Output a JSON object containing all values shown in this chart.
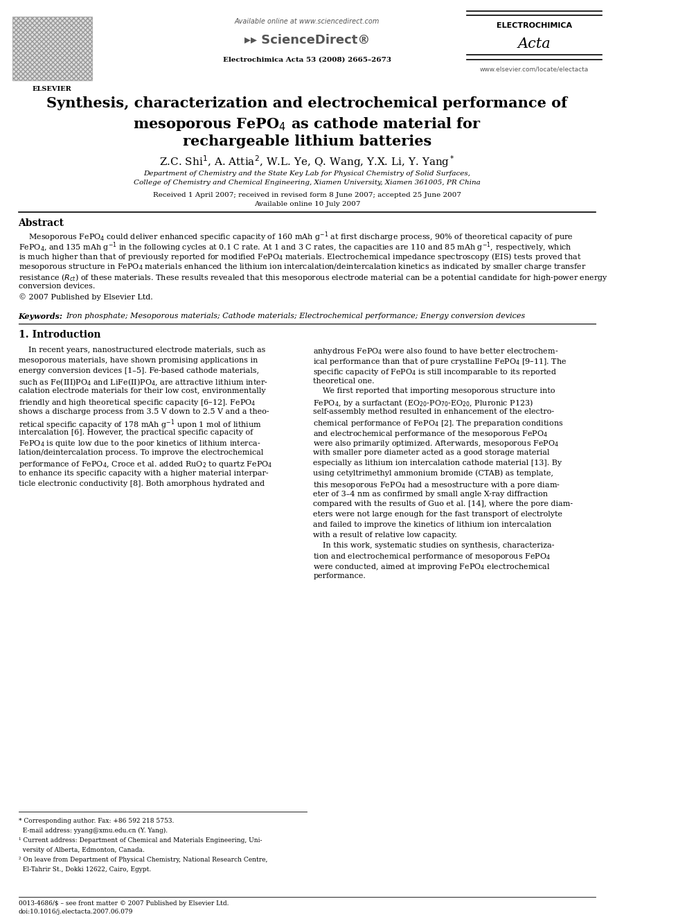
{
  "bg_color": "#ffffff",
  "page_width": 9.92,
  "page_height": 13.23,
  "header": {
    "available_online": "Available online at www.sciencedirect.com",
    "journal_line": "Electrochimica Acta 53 (2008) 2665–2673",
    "website": "www.elsevier.com/locate/electacta",
    "elsevier_label": "ELSEVIER",
    "journal_name_top": "ELECTROCHIMICA",
    "journal_name_script": "Acta"
  },
  "title_line1": "Synthesis, characterization and electrochemical performance of",
  "title_line2": "mesoporous FePO$_4$ as cathode material for",
  "title_line3": "rechargeable lithium batteries",
  "affil1": "Department of Chemistry and the State Key Lab for Physical Chemistry of Solid Surfaces,",
  "affil2": "College of Chemistry and Chemical Engineering, Xiamen University, Xiamen 361005, PR China",
  "dates": "Received 1 April 2007; received in revised form 8 June 2007; accepted 25 June 2007",
  "online": "Available online 10 July 2007",
  "abstract_title": "Abstract",
  "keywords_label": "Keywords:  ",
  "keywords_text": "Iron phosphate; Mesoporous materials; Cathode materials; Electrochemical performance; Energy conversion devices",
  "section1_title": "1. Introduction",
  "footnotes": [
    "* Corresponding author. Fax: +86 592 218 5753.",
    "  E-mail address: yyang@xmu.edu.cn (Y. Yang).",
    "¹ Current address: Department of Chemical and Materials Engineering, Uni-",
    "  versity of Alberta, Edmonton, Canada.",
    "² On leave from Department of Physical Chemistry, National Research Centre,",
    "  El-Tahrir St., Dokki 12622, Cairo, Egypt."
  ],
  "bottom_line1": "0013-4686/$ – see front matter © 2007 Published by Elsevier Ltd.",
  "bottom_line2": "doi:10.1016/j.electacta.2007.06.079"
}
